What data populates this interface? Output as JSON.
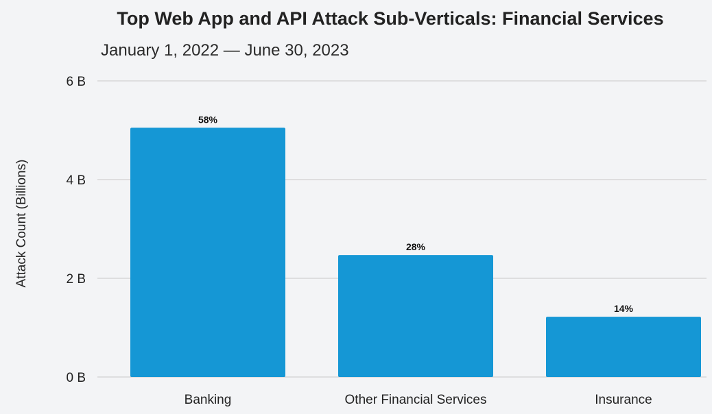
{
  "chart_data": {
    "type": "bar",
    "title": "Top Web App and API Attack Sub-Verticals: Financial Services",
    "subtitle": "January 1, 2022 — June 30, 2023",
    "xlabel": "",
    "ylabel": "Attack Count (Billions)",
    "categories": [
      "Banking",
      "Other Financial Services",
      "Insurance"
    ],
    "values": [
      5.05,
      2.47,
      1.22
    ],
    "data_labels": [
      "58%",
      "28%",
      "14%"
    ],
    "ylim": [
      0,
      6
    ],
    "yticks": [
      0,
      2,
      4,
      6
    ],
    "ytick_labels": [
      "0 B",
      "2 B",
      "4 B",
      "6 B"
    ],
    "grid": true,
    "legend": "none",
    "bar_color": "#1597d5"
  }
}
